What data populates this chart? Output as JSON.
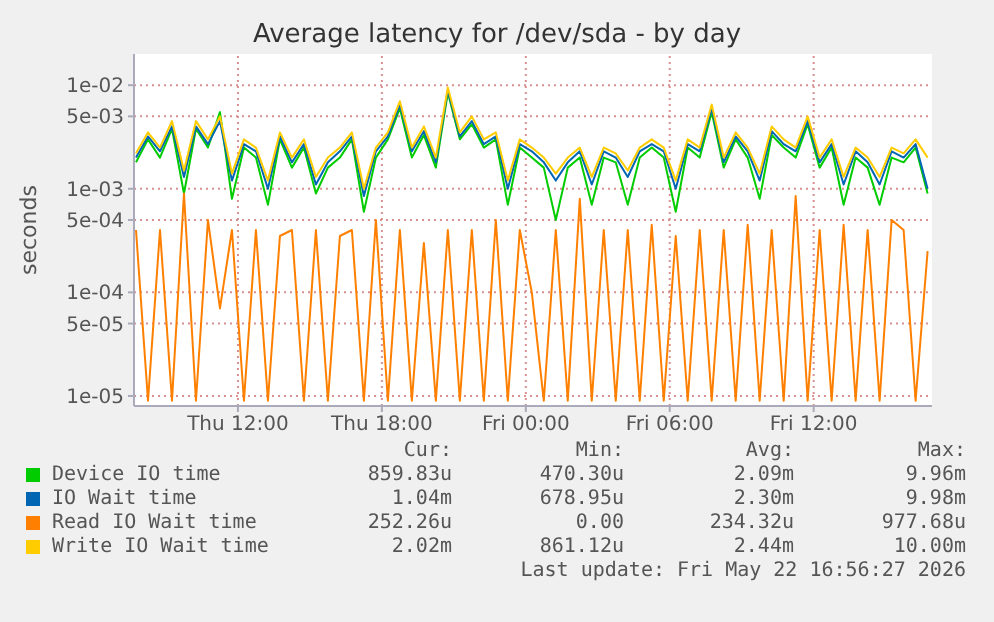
{
  "chart_data": {
    "type": "line",
    "title": "Average latency for /dev/sda - by day",
    "ylabel": "seconds",
    "log": "y",
    "grid": true,
    "legend": "bottom",
    "xlim": [
      "2026-05-21T07:40",
      "2026-05-22T16:56"
    ],
    "xticks": [
      {
        "value": "2026-05-21T12:00",
        "label": "Thu 12:00"
      },
      {
        "value": "2026-05-21T18:00",
        "label": "Thu 18:00"
      },
      {
        "value": "2026-05-22T00:00",
        "label": "Fri 00:00"
      },
      {
        "value": "2026-05-22T06:00",
        "label": "Fri 06:00"
      },
      {
        "value": "2026-05-22T12:00",
        "label": "Fri 12:00"
      }
    ],
    "ylim": [
      8e-06,
      0.02
    ],
    "yticks": [
      {
        "value": 1e-05,
        "label": "1e-05"
      },
      {
        "value": 5e-05,
        "label": "5e-05"
      },
      {
        "value": 0.0001,
        "label": "1e-04"
      },
      {
        "value": 0.0005,
        "label": "5e-04"
      },
      {
        "value": 0.001,
        "label": "1e-03"
      },
      {
        "value": 0.005,
        "label": "5e-03"
      },
      {
        "value": 0.01,
        "label": "1e-02"
      }
    ],
    "x": [
      "2026-05-21T07:45",
      "2026-05-21T08:15",
      "2026-05-21T08:45",
      "2026-05-21T09:15",
      "2026-05-21T09:45",
      "2026-05-21T10:15",
      "2026-05-21T10:45",
      "2026-05-21T11:15",
      "2026-05-21T11:45",
      "2026-05-21T12:15",
      "2026-05-21T12:45",
      "2026-05-21T13:15",
      "2026-05-21T13:45",
      "2026-05-21T14:15",
      "2026-05-21T14:45",
      "2026-05-21T15:15",
      "2026-05-21T15:45",
      "2026-05-21T16:15",
      "2026-05-21T16:45",
      "2026-05-21T17:15",
      "2026-05-21T17:45",
      "2026-05-21T18:15",
      "2026-05-21T18:45",
      "2026-05-21T19:15",
      "2026-05-21T19:45",
      "2026-05-21T20:15",
      "2026-05-21T20:45",
      "2026-05-21T21:15",
      "2026-05-21T21:45",
      "2026-05-21T22:15",
      "2026-05-21T22:45",
      "2026-05-21T23:15",
      "2026-05-21T23:45",
      "2026-05-22T00:15",
      "2026-05-22T00:45",
      "2026-05-22T01:15",
      "2026-05-22T01:45",
      "2026-05-22T02:15",
      "2026-05-22T02:45",
      "2026-05-22T03:15",
      "2026-05-22T03:45",
      "2026-05-22T04:15",
      "2026-05-22T04:45",
      "2026-05-22T05:15",
      "2026-05-22T05:45",
      "2026-05-22T06:15",
      "2026-05-22T06:45",
      "2026-05-22T07:15",
      "2026-05-22T07:45",
      "2026-05-22T08:15",
      "2026-05-22T08:45",
      "2026-05-22T09:15",
      "2026-05-22T09:45",
      "2026-05-22T10:15",
      "2026-05-22T10:45",
      "2026-05-22T11:15",
      "2026-05-22T11:45",
      "2026-05-22T12:15",
      "2026-05-22T12:45",
      "2026-05-22T13:15",
      "2026-05-22T13:45",
      "2026-05-22T14:15",
      "2026-05-22T14:45",
      "2026-05-22T15:15",
      "2026-05-22T15:45",
      "2026-05-22T16:15",
      "2026-05-22T16:45"
    ],
    "series": [
      {
        "name": "Device IO time",
        "color": "#00cc00",
        "values": [
          0.0018,
          0.003,
          0.002,
          0.0038,
          0.0009,
          0.0038,
          0.0025,
          0.0055,
          0.0008,
          0.0025,
          0.002,
          0.0007,
          0.003,
          0.0016,
          0.0025,
          0.0009,
          0.0016,
          0.002,
          0.003,
          0.0006,
          0.002,
          0.003,
          0.006,
          0.002,
          0.0033,
          0.0016,
          0.0085,
          0.003,
          0.0042,
          0.0025,
          0.003,
          0.0007,
          0.0025,
          0.002,
          0.0016,
          0.0005,
          0.0016,
          0.002,
          0.0007,
          0.002,
          0.0018,
          0.0007,
          0.002,
          0.0025,
          0.002,
          0.0006,
          0.0025,
          0.002,
          0.0055,
          0.0016,
          0.003,
          0.002,
          0.0008,
          0.0033,
          0.0025,
          0.002,
          0.0042,
          0.0016,
          0.0025,
          0.0007,
          0.002,
          0.0016,
          0.0007,
          0.002,
          0.0018,
          0.0025,
          0.0009
        ]
      },
      {
        "name": "IO Wait time",
        "color": "#0066b3",
        "values": [
          0.002,
          0.0032,
          0.0023,
          0.004,
          0.0013,
          0.004,
          0.0027,
          0.0045,
          0.0012,
          0.0027,
          0.0023,
          0.001,
          0.0032,
          0.0018,
          0.0027,
          0.0011,
          0.0018,
          0.0023,
          0.0032,
          0.00085,
          0.0023,
          0.0032,
          0.0065,
          0.0023,
          0.0036,
          0.0018,
          0.009,
          0.0032,
          0.0045,
          0.0027,
          0.0032,
          0.001,
          0.0027,
          0.0023,
          0.0018,
          0.0012,
          0.0018,
          0.0023,
          0.0011,
          0.0023,
          0.002,
          0.0013,
          0.0023,
          0.0027,
          0.0023,
          0.001,
          0.0027,
          0.0023,
          0.006,
          0.0018,
          0.0032,
          0.0023,
          0.0012,
          0.0036,
          0.0027,
          0.0023,
          0.0045,
          0.0018,
          0.0027,
          0.0011,
          0.0023,
          0.0018,
          0.0011,
          0.0023,
          0.002,
          0.0027,
          0.001
        ]
      },
      {
        "name": "Read IO Wait time",
        "color": "#ff8000",
        "values": [
          0.0004,
          9e-06,
          0.0004,
          9e-06,
          0.0009,
          9e-06,
          0.0005,
          7e-05,
          0.0004,
          9e-06,
          0.0004,
          9e-06,
          0.00035,
          0.0004,
          9e-06,
          0.0004,
          9e-06,
          0.00035,
          0.0004,
          9e-06,
          0.0005,
          9e-06,
          0.0004,
          9e-06,
          0.0003,
          9e-06,
          0.0004,
          9e-06,
          0.0004,
          9e-06,
          0.0005,
          9e-06,
          0.0004,
          0.0001,
          9e-06,
          0.0004,
          9e-06,
          0.0008,
          9e-06,
          0.0004,
          9e-06,
          0.0004,
          9e-06,
          0.00045,
          9e-06,
          0.00035,
          9e-06,
          0.0004,
          9e-06,
          0.0004,
          9e-06,
          0.00045,
          9e-06,
          0.0004,
          9e-06,
          0.00085,
          9e-06,
          0.0004,
          9e-06,
          0.00045,
          9e-06,
          0.0004,
          9e-06,
          0.0005,
          0.0004,
          9e-06,
          0.00025
        ]
      },
      {
        "name": "Write IO Wait time",
        "color": "#ffcc00",
        "values": [
          0.0022,
          0.0035,
          0.0025,
          0.0045,
          0.0015,
          0.0045,
          0.003,
          0.005,
          0.0014,
          0.003,
          0.0025,
          0.0012,
          0.0035,
          0.002,
          0.003,
          0.0013,
          0.002,
          0.0025,
          0.0035,
          0.001,
          0.0025,
          0.0035,
          0.007,
          0.0025,
          0.004,
          0.002,
          0.0095,
          0.0035,
          0.005,
          0.003,
          0.0035,
          0.0012,
          0.003,
          0.0025,
          0.002,
          0.0014,
          0.002,
          0.0025,
          0.0013,
          0.0025,
          0.0022,
          0.0015,
          0.0025,
          0.003,
          0.0025,
          0.0012,
          0.003,
          0.0025,
          0.0065,
          0.002,
          0.0035,
          0.0025,
          0.0014,
          0.004,
          0.003,
          0.0025,
          0.005,
          0.002,
          0.003,
          0.0013,
          0.0025,
          0.002,
          0.0013,
          0.0025,
          0.0022,
          0.003,
          0.002
        ]
      }
    ],
    "annotations": [
      "Cur:",
      "Min:",
      "Avg:",
      "Max:",
      "859.83u",
      "470.30u",
      "2.09m",
      "9.96m",
      "1.04m",
      "678.95u",
      "2.30m",
      "9.98m",
      "252.26u",
      "0.00",
      "234.32u",
      "977.68u",
      "2.02m",
      "861.12u",
      "2.44m",
      "10.00m",
      "Last update: Fri May 22 16:56:27 2026"
    ]
  }
}
